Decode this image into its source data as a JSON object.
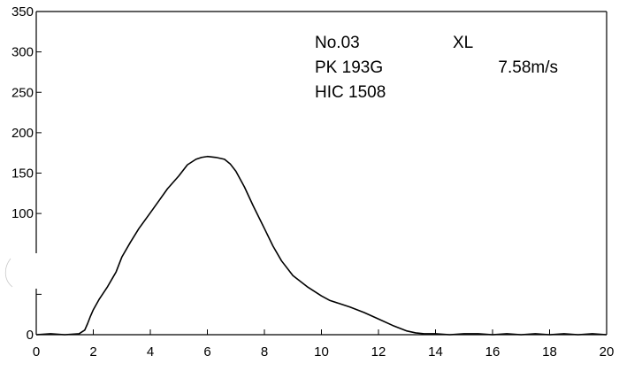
{
  "chart_data": {
    "type": "line",
    "title": "",
    "xlabel": "",
    "ylabel": "",
    "xlim": [
      0,
      20
    ],
    "ylim": [
      0,
      350
    ],
    "xticks": [
      "0",
      "2",
      "4",
      "6",
      "8",
      "10",
      "12",
      "14",
      "16",
      "18",
      "20"
    ],
    "yticks": [
      "0",
      "",
      "",
      "100",
      "150",
      "200",
      "250",
      "300",
      "350"
    ],
    "grid": false,
    "annotations": {
      "number": "No.03",
      "size": "XL",
      "peak": "PK 193G",
      "speed": "7.58m/s",
      "hic": "HIC 1508"
    },
    "series": [
      {
        "name": "",
        "x": [
          0,
          0.5,
          1.0,
          1.5,
          1.7,
          1.8,
          1.9,
          2.0,
          2.2,
          2.5,
          2.8,
          3.0,
          3.3,
          3.6,
          4.0,
          4.3,
          4.6,
          5.0,
          5.3,
          5.6,
          5.8,
          6.0,
          6.3,
          6.6,
          6.8,
          7.0,
          7.3,
          7.6,
          8.0,
          8.3,
          8.6,
          9.0,
          9.5,
          10.0,
          10.3,
          10.6,
          11.0,
          11.5,
          12.0,
          12.5,
          13.0,
          13.3,
          13.6,
          14.0,
          14.5,
          15.0,
          15.5,
          16.0,
          16.5,
          17.0,
          17.5,
          18.0,
          18.5,
          19.0,
          19.5,
          20.0
        ],
        "y": [
          0,
          1,
          0,
          1,
          5,
          12,
          20,
          27,
          38,
          52,
          68,
          84,
          100,
          115,
          132,
          145,
          158,
          172,
          184,
          190,
          192,
          193,
          192,
          190,
          185,
          177,
          160,
          140,
          115,
          96,
          80,
          64,
          52,
          42,
          37,
          34,
          30,
          24,
          17,
          10,
          4,
          2,
          1,
          1,
          0,
          1,
          1,
          0,
          1,
          0,
          1,
          0,
          1,
          0,
          1,
          0
        ]
      }
    ]
  }
}
